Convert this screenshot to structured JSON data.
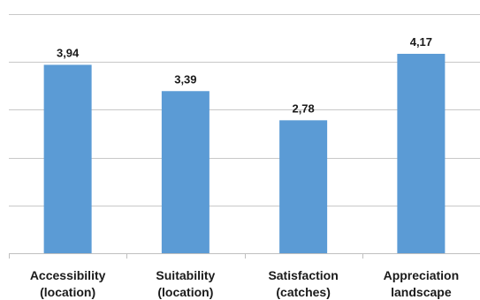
{
  "chart_data": {
    "type": "bar",
    "categories": [
      [
        "Accessibility",
        "(location)"
      ],
      [
        "Suitability",
        "(location)"
      ],
      [
        "Satisfaction",
        "(catches)"
      ],
      [
        "Appreciation",
        "landscape"
      ]
    ],
    "values": [
      3.94,
      3.39,
      2.78,
      4.17
    ],
    "data_labels": [
      "3,94",
      "3,39",
      "2,78",
      "4,17"
    ],
    "ylim": [
      0,
      5
    ],
    "grid": true,
    "legend": "none",
    "bar_color": "#5b9bd5"
  }
}
